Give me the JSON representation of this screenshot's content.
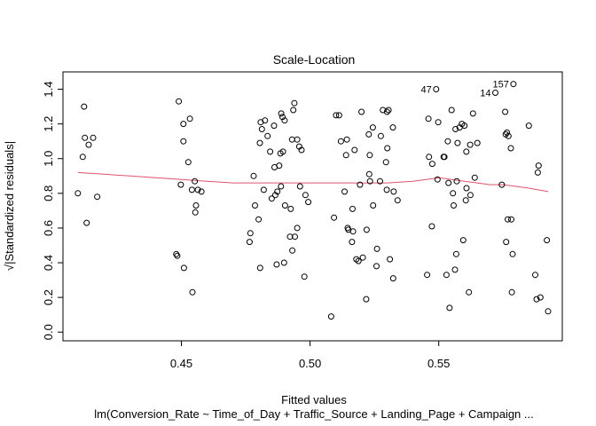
{
  "chart_data": {
    "type": "scatter",
    "title": "Scale-Location",
    "xlabel": "Fitted values",
    "subtitle": "lm(Conversion_Rate ~ Time_of_Day + Traffic_Source + Landing_Page + Campaign ...",
    "ylabel": "√|Standardized residuals|",
    "xlim": [
      0.404,
      0.598
    ],
    "ylim": [
      -0.05,
      1.5
    ],
    "xticks": [
      0.45,
      0.5,
      0.55
    ],
    "xtick_labels": [
      "0.45",
      "0.50",
      "0.55"
    ],
    "yticks": [
      0.0,
      0.2,
      0.4,
      0.6,
      0.8,
      1.0,
      1.2,
      1.4
    ],
    "ytick_labels": [
      "0.0",
      "0.2",
      "0.4",
      "0.6",
      "0.8",
      "1.0",
      "1.2",
      "1.4"
    ],
    "grid": false,
    "point_color": "#000000",
    "smooth_color": "#DF536B",
    "points": [
      [
        0.4098,
        0.8
      ],
      [
        0.4117,
        1.01
      ],
      [
        0.4122,
        1.3
      ],
      [
        0.4125,
        1.12
      ],
      [
        0.4132,
        0.63
      ],
      [
        0.414,
        1.08
      ],
      [
        0.4157,
        1.12
      ],
      [
        0.4173,
        0.78
      ],
      [
        0.448,
        0.45
      ],
      [
        0.4484,
        0.44
      ],
      [
        0.449,
        1.33
      ],
      [
        0.4498,
        0.85
      ],
      [
        0.4508,
        1.2
      ],
      [
        0.4508,
        1.1
      ],
      [
        0.451,
        0.37
      ],
      [
        0.4527,
        0.98
      ],
      [
        0.4533,
        1.23
      ],
      [
        0.4541,
        0.82
      ],
      [
        0.4543,
        0.23
      ],
      [
        0.4552,
        0.87
      ],
      [
        0.4554,
        0.69
      ],
      [
        0.4557,
        0.73
      ],
      [
        0.4564,
        0.82
      ],
      [
        0.4578,
        0.81
      ],
      [
        0.4765,
        0.52
      ],
      [
        0.4768,
        0.57
      ],
      [
        0.4781,
        0.9
      ],
      [
        0.4786,
        0.73
      ],
      [
        0.48,
        0.65
      ],
      [
        0.4805,
        1.09
      ],
      [
        0.4806,
        0.37
      ],
      [
        0.4808,
        1.21
      ],
      [
        0.4813,
        1.17
      ],
      [
        0.482,
        0.82
      ],
      [
        0.4825,
        1.22
      ],
      [
        0.4835,
        1.13
      ],
      [
        0.4845,
        1.04
      ],
      [
        0.4851,
        0.77
      ],
      [
        0.486,
        1.19
      ],
      [
        0.4862,
        0.95
      ],
      [
        0.4865,
        0.79
      ],
      [
        0.487,
        0.39
      ],
      [
        0.4873,
        0.81
      ],
      [
        0.488,
        0.96
      ],
      [
        0.4885,
        1.03
      ],
      [
        0.4887,
        0.84
      ],
      [
        0.4888,
        1.26
      ],
      [
        0.4893,
        1.24
      ],
      [
        0.4895,
        1.04
      ],
      [
        0.4899,
        0.4
      ],
      [
        0.4901,
        1.22
      ],
      [
        0.4903,
        0.73
      ],
      [
        0.4922,
        0.55
      ],
      [
        0.4925,
        0.71
      ],
      [
        0.493,
        1.11
      ],
      [
        0.4931,
        0.47
      ],
      [
        0.4935,
        1.28
      ],
      [
        0.4939,
        1.32
      ],
      [
        0.4941,
        0.55
      ],
      [
        0.495,
        1.11
      ],
      [
        0.495,
        0.6
      ],
      [
        0.4958,
        1.07
      ],
      [
        0.4961,
        0.84
      ],
      [
        0.4967,
        1.05
      ],
      [
        0.4978,
        0.32
      ],
      [
        0.4982,
        0.79
      ],
      [
        0.4993,
        0.75
      ],
      [
        0.5082,
        0.09
      ],
      [
        0.5093,
        0.66
      ],
      [
        0.5101,
        1.25
      ],
      [
        0.5113,
        1.25
      ],
      [
        0.512,
        1.1
      ],
      [
        0.5134,
        0.81
      ],
      [
        0.514,
        1.02
      ],
      [
        0.5143,
        1.11
      ],
      [
        0.5146,
        0.6
      ],
      [
        0.5149,
        0.59
      ],
      [
        0.5163,
        0.52
      ],
      [
        0.5165,
        0.71
      ],
      [
        0.5167,
        0.58
      ],
      [
        0.5173,
        1.05
      ],
      [
        0.518,
        0.42
      ],
      [
        0.5188,
        0.41
      ],
      [
        0.5194,
        0.85
      ],
      [
        0.52,
        1.27
      ],
      [
        0.5205,
        0.43
      ],
      [
        0.5218,
        0.19
      ],
      [
        0.522,
        0.59
      ],
      [
        0.5228,
        1.14
      ],
      [
        0.523,
        0.91
      ],
      [
        0.5232,
        1.02
      ],
      [
        0.5233,
        0.87
      ],
      [
        0.5244,
        1.18
      ],
      [
        0.5245,
        0.73
      ],
      [
        0.5258,
        0.38
      ],
      [
        0.526,
        0.48
      ],
      [
        0.5272,
        0.87
      ],
      [
        0.5275,
        1.13
      ],
      [
        0.5283,
        1.28
      ],
      [
        0.5295,
        0.98
      ],
      [
        0.5298,
        0.82
      ],
      [
        0.5299,
        1.27
      ],
      [
        0.53,
        1.06
      ],
      [
        0.5305,
        1.28
      ],
      [
        0.531,
        0.42
      ],
      [
        0.5322,
        1.18
      ],
      [
        0.5323,
        0.31
      ],
      [
        0.5325,
        0.81
      ],
      [
        0.534,
        0.76
      ],
      [
        0.5455,
        0.33
      ],
      [
        0.546,
        1.23
      ],
      [
        0.5462,
        1.01
      ],
      [
        0.5473,
        0.61
      ],
      [
        0.5475,
        0.97
      ],
      [
        0.549,
        1.4
      ],
      [
        0.5495,
        0.88
      ],
      [
        0.5498,
        1.21
      ],
      [
        0.5519,
        1.01
      ],
      [
        0.5522,
        1.01
      ],
      [
        0.553,
        0.33
      ],
      [
        0.5535,
        1.1
      ],
      [
        0.5538,
        0.86
      ],
      [
        0.5542,
        0.14
      ],
      [
        0.555,
        1.28
      ],
      [
        0.5555,
        0.8
      ],
      [
        0.5558,
        0.73
      ],
      [
        0.5563,
        0.36
      ],
      [
        0.5565,
        1.17
      ],
      [
        0.5568,
        0.45
      ],
      [
        0.557,
        0.87
      ],
      [
        0.5573,
        1.09
      ],
      [
        0.5581,
        1.18
      ],
      [
        0.559,
        1.2
      ],
      [
        0.5595,
        0.53
      ],
      [
        0.56,
        1.19
      ],
      [
        0.5605,
        0.76
      ],
      [
        0.5607,
        1.04
      ],
      [
        0.5608,
        0.83
      ],
      [
        0.5617,
        0.23
      ],
      [
        0.5622,
        1.08
      ],
      [
        0.5623,
        0.79
      ],
      [
        0.5633,
        1.26
      ],
      [
        0.564,
        0.89
      ],
      [
        0.565,
        1.09
      ],
      [
        0.572,
        1.38
      ],
      [
        0.5745,
        0.85
      ],
      [
        0.5758,
        1.27
      ],
      [
        0.576,
        1.14
      ],
      [
        0.5762,
        0.52
      ],
      [
        0.5765,
        1.15
      ],
      [
        0.5768,
        0.65
      ],
      [
        0.5771,
        1.13
      ],
      [
        0.578,
        1.06
      ],
      [
        0.5782,
        0.65
      ],
      [
        0.5784,
        0.23
      ],
      [
        0.5787,
        0.45
      ],
      [
        0.579,
        1.43
      ],
      [
        0.585,
        1.19
      ],
      [
        0.5875,
        0.33
      ],
      [
        0.588,
        0.19
      ],
      [
        0.5885,
        0.92
      ],
      [
        0.5888,
        0.96
      ],
      [
        0.5895,
        0.2
      ],
      [
        0.592,
        0.53
      ],
      [
        0.5925,
        0.12
      ]
    ],
    "smooth_line": [
      [
        0.4098,
        0.92
      ],
      [
        0.42,
        0.91
      ],
      [
        0.43,
        0.9
      ],
      [
        0.44,
        0.89
      ],
      [
        0.45,
        0.88
      ],
      [
        0.46,
        0.87
      ],
      [
        0.47,
        0.86
      ],
      [
        0.48,
        0.86
      ],
      [
        0.49,
        0.86
      ],
      [
        0.5,
        0.86
      ],
      [
        0.51,
        0.86
      ],
      [
        0.52,
        0.86
      ],
      [
        0.53,
        0.86
      ],
      [
        0.54,
        0.87
      ],
      [
        0.545,
        0.88
      ],
      [
        0.55,
        0.89
      ],
      [
        0.555,
        0.88
      ],
      [
        0.56,
        0.87
      ],
      [
        0.565,
        0.86
      ],
      [
        0.57,
        0.85
      ],
      [
        0.575,
        0.85
      ],
      [
        0.58,
        0.84
      ],
      [
        0.585,
        0.83
      ],
      [
        0.5925,
        0.81
      ]
    ],
    "annotations": [
      {
        "label": "47",
        "x": 0.549,
        "y": 1.4,
        "side": "left"
      },
      {
        "label": "157",
        "x": 0.579,
        "y": 1.43,
        "side": "left"
      },
      {
        "label": "14",
        "x": 0.572,
        "y": 1.38,
        "side": "left"
      }
    ]
  }
}
